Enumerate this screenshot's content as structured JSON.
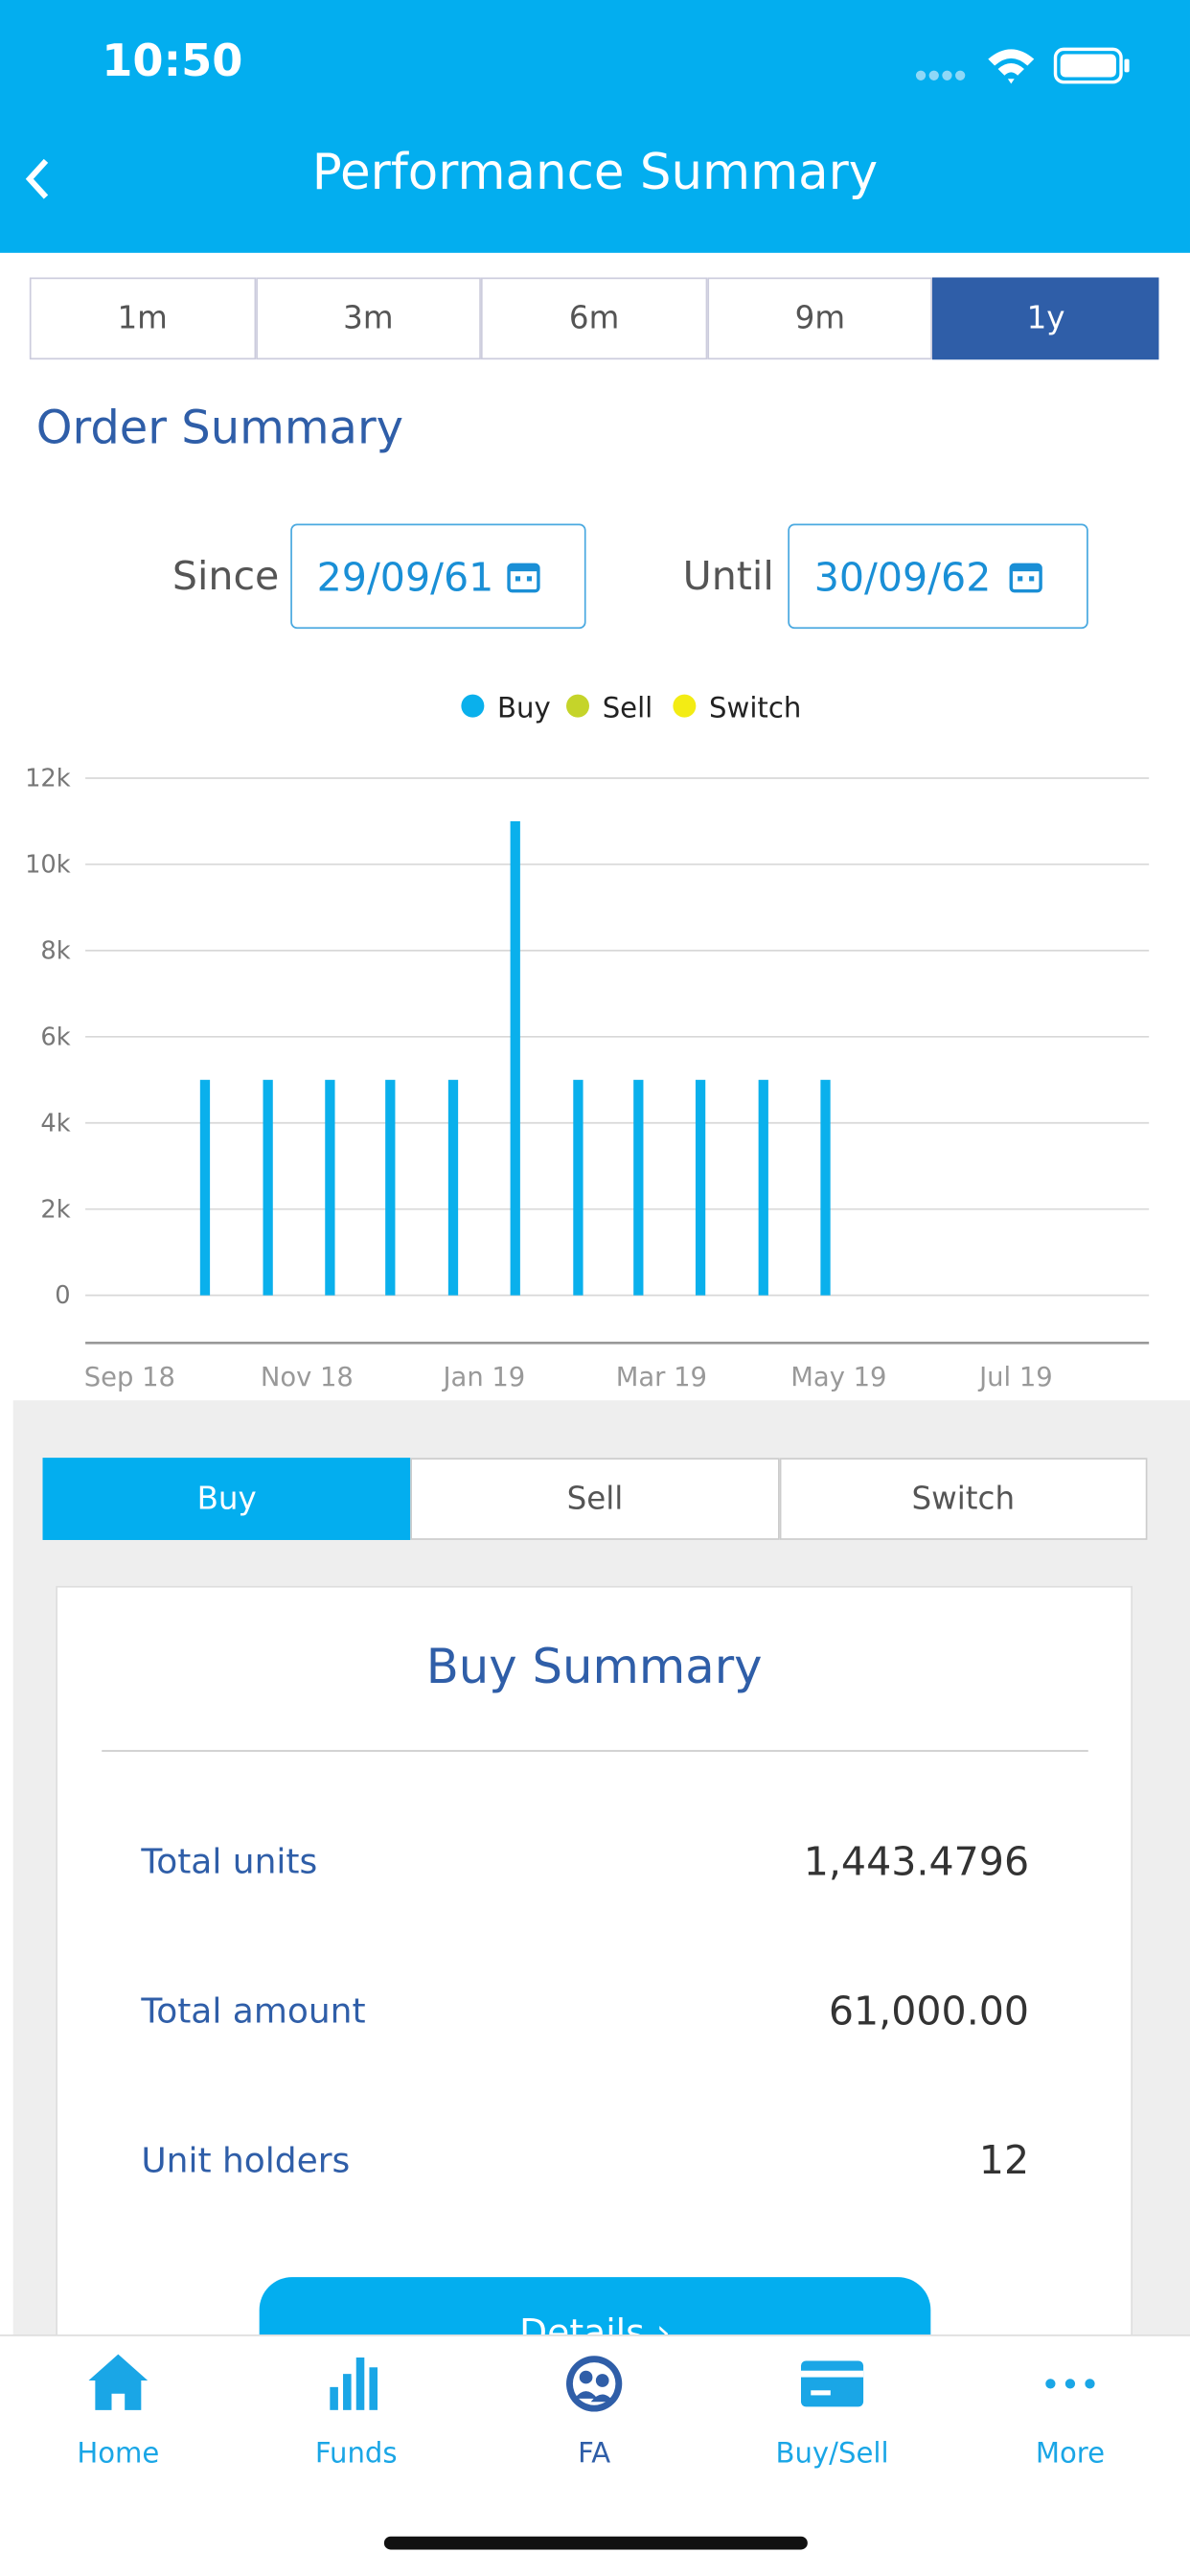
{
  "status_bar": {
    "time": "10:50"
  },
  "header": {
    "title": "Performance Summary"
  },
  "period_tabs": {
    "items": [
      "1m",
      "3m",
      "6m",
      "9m",
      "1y"
    ],
    "selected": 4
  },
  "order_summary": {
    "title": "Order Summary",
    "since_label": "Since",
    "since_value": "29/09/61",
    "until_label": "Until",
    "until_value": "30/09/62"
  },
  "chart_data": {
    "type": "bar",
    "legend": "top",
    "grid": true,
    "x": [
      0.85,
      1.56,
      2.26,
      2.94,
      3.65,
      4.35,
      5.06,
      5.74,
      6.44,
      7.15,
      7.85
    ],
    "xlim": [
      -0.5,
      11.5
    ],
    "xticks": [
      {
        "value": 0,
        "label": "Sep 18"
      },
      {
        "value": 2,
        "label": "Nov 18"
      },
      {
        "value": 4,
        "label": "Jan 19"
      },
      {
        "value": 6,
        "label": "Mar 19"
      },
      {
        "value": 8,
        "label": "May 19"
      },
      {
        "value": 10,
        "label": "Jul 19"
      }
    ],
    "ylim": [
      0,
      12000
    ],
    "yticks": [
      0,
      {
        "value": 2000,
        "label": "2k"
      },
      {
        "value": 4000,
        "label": "4k"
      },
      {
        "value": 6000,
        "label": "6k"
      },
      {
        "value": 8000,
        "label": "8k"
      },
      {
        "value": 10000,
        "label": "10k"
      },
      {
        "value": 12000,
        "label": "12k"
      }
    ],
    "series": [
      {
        "name": "Buy",
        "color": "#0ab0ec",
        "values": [
          5000,
          5000,
          5000,
          5000,
          5000,
          11000,
          5000,
          5000,
          5000,
          5000,
          5000
        ]
      },
      {
        "name": "Sell",
        "color": "#c5d42a",
        "values": [
          0,
          0,
          0,
          0,
          0,
          0,
          0,
          0,
          0,
          0,
          0
        ]
      },
      {
        "name": "Switch",
        "color": "#f3ec14",
        "values": [
          0,
          0,
          0,
          0,
          0,
          0,
          0,
          0,
          0,
          0,
          0
        ]
      }
    ]
  },
  "type_tabs": {
    "items": [
      "Buy",
      "Sell",
      "Switch"
    ],
    "selected": 0
  },
  "summary_card": {
    "title": "Buy Summary",
    "rows": [
      {
        "label": "Total units",
        "value": "1,443.4796"
      },
      {
        "label": "Total amount",
        "value": "61,000.00"
      },
      {
        "label": "Unit holders",
        "value": "12"
      }
    ],
    "button": "Details"
  },
  "nav": {
    "items": [
      "Home",
      "Funds",
      "FA",
      "Buy/Sell",
      "More"
    ]
  }
}
